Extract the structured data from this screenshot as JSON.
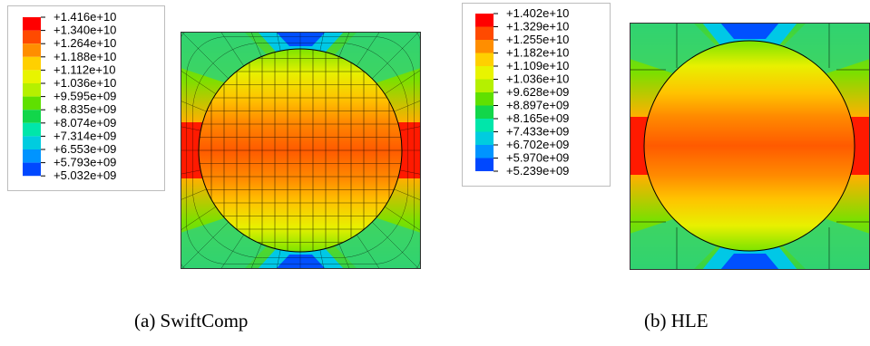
{
  "panels": [
    {
      "caption": "(a) SwiftComp",
      "legend_values": [
        "+1.416e+10",
        "+1.340e+10",
        "+1.264e+10",
        "+1.188e+10",
        "+1.112e+10",
        "+1.036e+10",
        "+9.595e+09",
        "+8.835e+09",
        "+8.074e+09",
        "+7.314e+09",
        "+6.553e+09",
        "+5.793e+09",
        "+5.032e+09"
      ]
    },
    {
      "caption": "(b) HLE",
      "legend_values": [
        "+1.402e+10",
        "+1.329e+10",
        "+1.255e+10",
        "+1.182e+10",
        "+1.109e+10",
        "+1.036e+10",
        "+9.628e+09",
        "+8.897e+09",
        "+8.165e+09",
        "+7.433e+09",
        "+6.702e+09",
        "+5.970e+09",
        "+5.239e+09"
      ]
    }
  ],
  "legend_colors": [
    "#ff0000",
    "#ff4a00",
    "#ff8e00",
    "#ffd000",
    "#e8f400",
    "#b5f000",
    "#5fe000",
    "#12d64a",
    "#00e6aa",
    "#00ccdf",
    "#0094ff",
    "#0048ff",
    "#0000ff"
  ]
}
